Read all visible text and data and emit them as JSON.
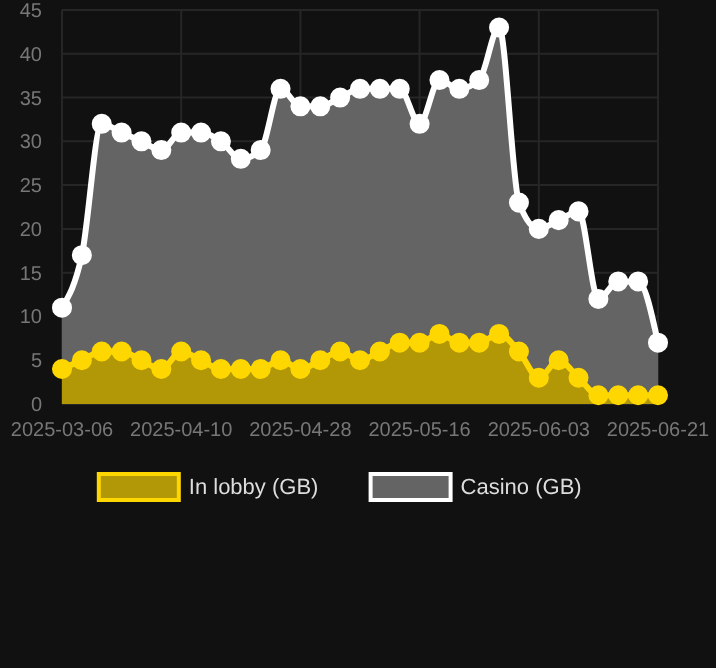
{
  "chart_data": {
    "type": "area",
    "categories": [
      "2025-03-06",
      null,
      null,
      null,
      null,
      null,
      "2025-04-10",
      null,
      null,
      null,
      null,
      null,
      "2025-04-28",
      null,
      null,
      null,
      null,
      null,
      "2025-05-16",
      null,
      null,
      null,
      null,
      null,
      "2025-06-03",
      null,
      null,
      null,
      null,
      null,
      "2025-06-21"
    ],
    "series": [
      {
        "name": "In lobby (GB)",
        "color": "#ffd700",
        "values": [
          4,
          5,
          6,
          6,
          5,
          4,
          6,
          5,
          4,
          4,
          4,
          5,
          4,
          5,
          6,
          5,
          6,
          7,
          7,
          8,
          7,
          7,
          8,
          6,
          3,
          5,
          3,
          1,
          1,
          1,
          1
        ]
      },
      {
        "name": "Casino (GB)",
        "color": "#ffffff",
        "values": [
          11,
          17,
          32,
          31,
          30,
          29,
          31,
          31,
          30,
          28,
          29,
          36,
          34,
          34,
          35,
          36,
          36,
          36,
          32,
          37,
          36,
          37,
          43,
          23,
          20,
          21,
          22,
          12,
          14,
          14,
          7
        ]
      }
    ],
    "ylim": [
      0,
      45
    ],
    "yticks": [
      0,
      5,
      10,
      15,
      20,
      25,
      30,
      35,
      40,
      45
    ],
    "grid": true,
    "legend": "bottom",
    "marker": "circle",
    "line_style": "solid"
  }
}
